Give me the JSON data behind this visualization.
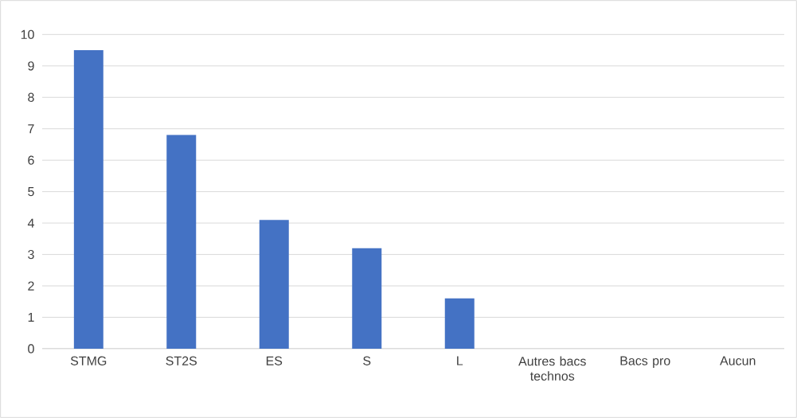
{
  "chart_data": {
    "type": "bar",
    "categories": [
      "STMG",
      "ST2S",
      "ES",
      "S",
      "L",
      "Autres bacs technos",
      "Bacs pro",
      "Aucun"
    ],
    "values": [
      9.5,
      6.8,
      4.1,
      3.2,
      1.6,
      0,
      0,
      0
    ],
    "color": "#4472c4",
    "ylim": [
      0,
      10
    ],
    "yticks": [
      0,
      1,
      2,
      3,
      4,
      5,
      6,
      7,
      8,
      9,
      10
    ],
    "grid": "y"
  }
}
